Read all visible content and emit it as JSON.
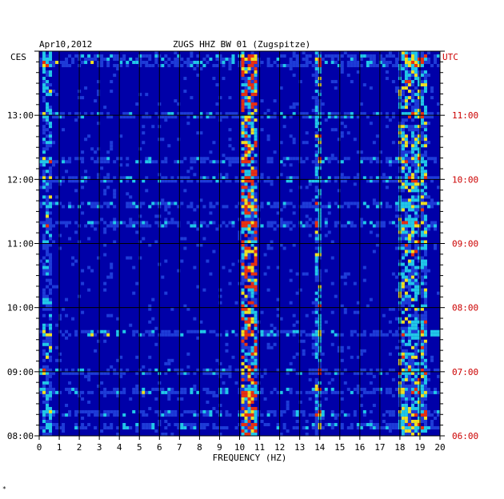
{
  "chart_data": {
    "type": "heatmap",
    "header": {
      "date": "Apr10,2012",
      "station": "ZUGS HHZ BW 01 (Zugspitze)"
    },
    "left_axis_label": "CES",
    "right_axis_label": "UTC",
    "xlabel": "FREQUENCY (HZ)",
    "xlim": [
      0,
      20
    ],
    "x_ticks": [
      "0",
      "1",
      "2",
      "3",
      "4",
      "5",
      "6",
      "7",
      "8",
      "9",
      "10",
      "11",
      "12",
      "13",
      "14",
      "15",
      "16",
      "17",
      "18",
      "19",
      "20"
    ],
    "ylim_local_hours": [
      8.0,
      14.0
    ],
    "y_ticks_left": [
      {
        "value": 13,
        "label": "13:00"
      },
      {
        "value": 12,
        "label": "12:00"
      },
      {
        "value": 11,
        "label": "11:00"
      },
      {
        "value": 10,
        "label": "10:00"
      },
      {
        "value": 9,
        "label": "09:00"
      },
      {
        "value": 8,
        "label": "08:00"
      }
    ],
    "y_ticks_right": [
      {
        "value": 13,
        "label": "11:00"
      },
      {
        "value": 12,
        "label": "10:00"
      },
      {
        "value": 11,
        "label": "09:00"
      },
      {
        "value": 10,
        "label": "08:00"
      },
      {
        "value": 9,
        "label": "07:00"
      },
      {
        "value": 8,
        "label": "06:00"
      }
    ],
    "colors": {
      "background": "#0000a8",
      "low": "#1e3cd8",
      "mid": "#21c8e8",
      "high": "#f0e020",
      "peak": "#e83010",
      "grid": "#000000",
      "utc_label": "#cc0000"
    },
    "energy_bands_hz": [
      {
        "from": 10.1,
        "to": 10.9,
        "strength": 0.85
      },
      {
        "from": 0.1,
        "to": 0.7,
        "strength": 0.45
      },
      {
        "from": 13.8,
        "to": 14.1,
        "strength": 0.55
      },
      {
        "from": 17.9,
        "to": 19.3,
        "strength": 0.6
      }
    ],
    "bright_rows_local_hours": [
      13.9,
      13.8,
      13.0,
      12.3,
      12.0,
      11.6,
      11.3,
      9.6,
      9.0,
      8.7,
      8.35,
      8.15
    ]
  },
  "footer_mark": "*"
}
